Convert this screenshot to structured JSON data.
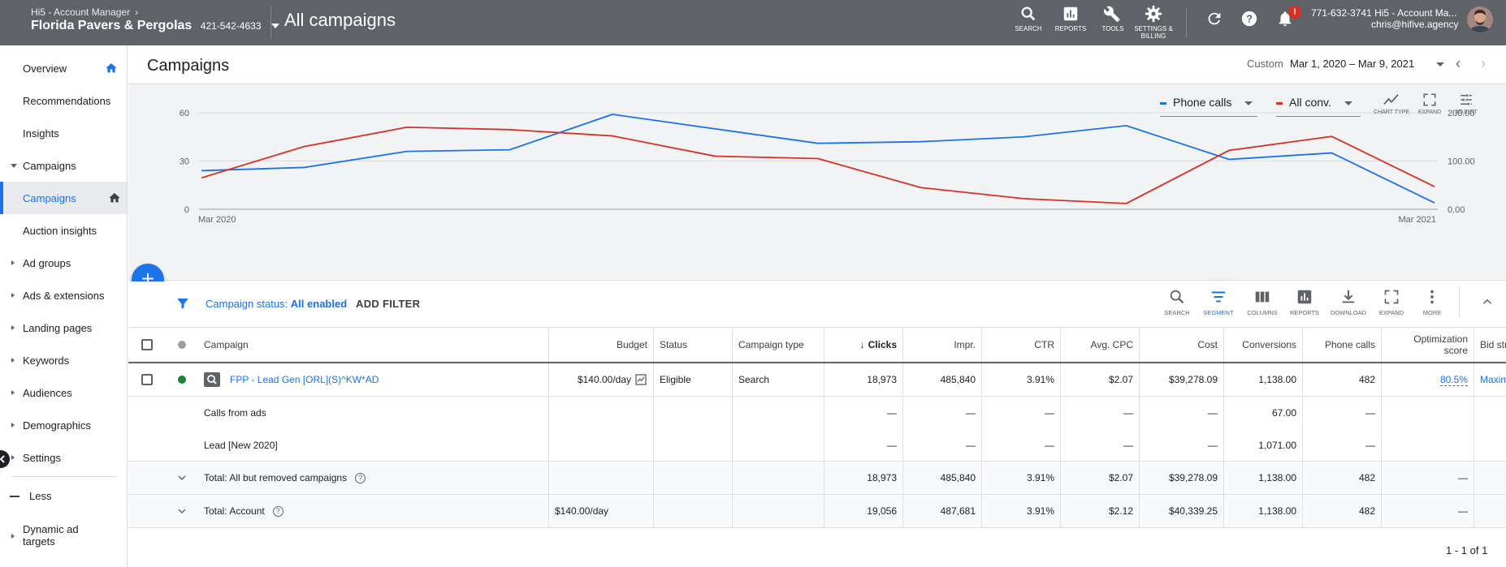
{
  "topbar": {
    "breadcrumb": "Hi5 - Account Manager",
    "account_name": "Florida Pavers & Pergolas",
    "account_id": "421-542-4633",
    "page_title": "All campaigns",
    "tools": [
      {
        "label": "SEARCH",
        "icon": "search-icon"
      },
      {
        "label": "REPORTS",
        "icon": "reports-icon"
      },
      {
        "label": "TOOLS",
        "icon": "wrench-icon"
      },
      {
        "label": "SETTINGS &",
        "label2": "BILLING",
        "icon": "gear-icon"
      }
    ],
    "notification_badge": "!",
    "user_line1": "771-632-3741 Hi5 - Account Ma...",
    "user_email": "chris@hifive.agency"
  },
  "sidebar": {
    "items": [
      {
        "label": "Overview"
      },
      {
        "label": "Recommendations"
      },
      {
        "label": "Insights"
      },
      {
        "label": "Campaigns"
      },
      {
        "label": "Campaigns"
      },
      {
        "label": "Auction insights"
      },
      {
        "label": "Ad groups"
      },
      {
        "label": "Ads & extensions"
      },
      {
        "label": "Landing pages"
      },
      {
        "label": "Keywords"
      },
      {
        "label": "Audiences"
      },
      {
        "label": "Demographics"
      },
      {
        "label": "Settings"
      }
    ],
    "less_label": "Less",
    "dynamic_label_1": "Dynamic ad",
    "dynamic_label_2": "targets"
  },
  "header": {
    "title": "Campaigns",
    "date_label": "Custom",
    "date_range": "Mar 1, 2020 – Mar 9, 2021"
  },
  "chart_controls": {
    "metric1": "Phone calls",
    "metric2": "All conv.",
    "tools": [
      "CHART TYPE",
      "EXPAND",
      "ADJUST"
    ]
  },
  "chart_data": {
    "type": "line",
    "x": [
      "Mar 2020",
      "Apr 2020",
      "May 2020",
      "Jun 2020",
      "Jul 2020",
      "Aug 2020",
      "Sep 2020",
      "Oct 2020",
      "Nov 2020",
      "Dec 2020",
      "Jan 2021",
      "Feb 2021",
      "Mar 2021"
    ],
    "x_tick_labels": [
      "Mar 2020",
      "Mar 2021"
    ],
    "series": [
      {
        "name": "Phone calls",
        "color": "#1a73e8",
        "axis": "left",
        "values": [
          24,
          26,
          36,
          37,
          59,
          50,
          41,
          42,
          45,
          52,
          31,
          35,
          4
        ]
      },
      {
        "name": "All conv.",
        "color": "#d93025",
        "axis": "right",
        "values": [
          65,
          130,
          170,
          165,
          152,
          110,
          105,
          45,
          22,
          12,
          122,
          151,
          47
        ]
      }
    ],
    "y_left_ticks": [
      "0",
      "30",
      "60"
    ],
    "y_left_range": [
      0,
      60
    ],
    "y_right_ticks": [
      "0.00",
      "100.00",
      "200.00"
    ],
    "y_right_range": [
      0,
      200
    ],
    "grid": true
  },
  "filter": {
    "status_label": "Campaign status:",
    "status_value": "All enabled",
    "add_filter": "ADD FILTER",
    "tools": [
      "SEARCH",
      "SEGMENT",
      "COLUMNS",
      "REPORTS",
      "DOWNLOAD",
      "EXPAND",
      "MORE"
    ]
  },
  "table": {
    "headers": {
      "campaign": "Campaign",
      "budget": "Budget",
      "status": "Status",
      "type": "Campaign type",
      "clicks": "Clicks",
      "impr": "Impr.",
      "ctr": "CTR",
      "cpc": "Avg. CPC",
      "cost": "Cost",
      "conversions": "Conversions",
      "phone_calls": "Phone calls",
      "opt1": "Optimization",
      "opt2": "score",
      "bid": "Bid strategy type"
    },
    "campaign_row": {
      "name": "FPP - Lead Gen [ORL](S)^KW*AD",
      "budget": "$140.00/day",
      "status": "Eligible",
      "type": "Search",
      "clicks": "18,973",
      "impr": "485,840",
      "ctr": "3.91%",
      "cpc": "$2.07",
      "cost": "$39,278.09",
      "conversions": "1,138.00",
      "phone_calls": "482",
      "opt": "80.5%",
      "bid": "Maximize clicks",
      "status_color": "#188038"
    },
    "segment_rows": [
      {
        "name": "Calls from ads",
        "clicks": "—",
        "impr": "—",
        "ctr": "—",
        "cpc": "—",
        "cost": "—",
        "conversions": "67.00",
        "phone_calls": "—"
      },
      {
        "name": "Lead [New 2020]",
        "clicks": "—",
        "impr": "—",
        "ctr": "—",
        "cpc": "—",
        "cost": "—",
        "conversions": "1,071.00",
        "phone_calls": "—"
      }
    ],
    "total_rows": [
      {
        "name": "Total: All but removed campaigns",
        "budget": "",
        "clicks": "18,973",
        "impr": "485,840",
        "ctr": "3.91%",
        "cpc": "$2.07",
        "cost": "$39,278.09",
        "conversions": "1,138.00",
        "phone_calls": "482",
        "opt": "—"
      },
      {
        "name": "Total: Account",
        "budget": "$140.00/day",
        "clicks": "19,056",
        "impr": "487,681",
        "ctr": "3.91%",
        "cpc": "$2.12",
        "cost": "$40,339.25",
        "conversions": "1,138.00",
        "phone_calls": "482",
        "opt": "—"
      }
    ],
    "pagination": "1 - 1 of 1"
  }
}
